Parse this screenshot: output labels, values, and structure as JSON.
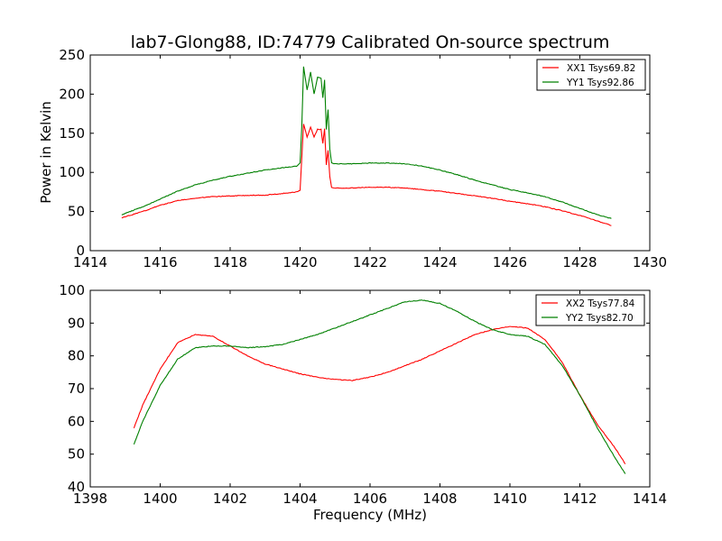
{
  "chart_data": [
    {
      "type": "line",
      "title": "lab7-Glong88, ID:74779 Calibrated On-source spectrum",
      "xlabel": "",
      "ylabel": "Power in Kelvin",
      "xlim": [
        1414,
        1430
      ],
      "ylim": [
        0,
        250
      ],
      "xticks": [
        1414,
        1416,
        1418,
        1420,
        1422,
        1424,
        1426,
        1428,
        1430
      ],
      "yticks": [
        0,
        50,
        100,
        150,
        200,
        250
      ],
      "grid": false,
      "legend_position": "top-right",
      "series": [
        {
          "name": "XX1 Tsys69.82",
          "color": "#ff0000",
          "x": [
            1414.9,
            1415.5,
            1416.0,
            1416.5,
            1417.0,
            1417.5,
            1418.0,
            1418.5,
            1419.0,
            1419.5,
            1419.9,
            1420.0,
            1420.05,
            1420.1,
            1420.2,
            1420.3,
            1420.4,
            1420.5,
            1420.6,
            1420.65,
            1420.7,
            1420.75,
            1420.8,
            1420.85,
            1420.9,
            1421.0,
            1421.5,
            1422.0,
            1422.5,
            1423.0,
            1423.5,
            1424.0,
            1424.5,
            1425.0,
            1425.5,
            1426.0,
            1426.5,
            1427.0,
            1427.5,
            1428.0,
            1428.5,
            1428.9
          ],
          "y": [
            42,
            50,
            58,
            64,
            67,
            69,
            70,
            70.5,
            71,
            73,
            75,
            77,
            120,
            162,
            145,
            158,
            145,
            155,
            155,
            137,
            156,
            110,
            128,
            95,
            81,
            80,
            80,
            81,
            81,
            80,
            78,
            76,
            73,
            70,
            67,
            63,
            60,
            56,
            51,
            45,
            38,
            32
          ]
        },
        {
          "name": "YY1 Tsys92.86",
          "color": "#008000",
          "x": [
            1414.9,
            1415.5,
            1416.0,
            1416.5,
            1417.0,
            1417.5,
            1418.0,
            1418.5,
            1419.0,
            1419.5,
            1419.9,
            1420.0,
            1420.05,
            1420.1,
            1420.2,
            1420.3,
            1420.4,
            1420.5,
            1420.6,
            1420.65,
            1420.7,
            1420.75,
            1420.8,
            1420.85,
            1420.9,
            1421.0,
            1421.5,
            1422.0,
            1422.5,
            1423.0,
            1423.5,
            1424.0,
            1424.5,
            1425.0,
            1425.5,
            1426.0,
            1426.5,
            1427.0,
            1427.5,
            1428.0,
            1428.5,
            1428.9
          ],
          "y": [
            46,
            56,
            66,
            76,
            84,
            90,
            95,
            99,
            103,
            106,
            108,
            112,
            160,
            235,
            205,
            228,
            200,
            222,
            220,
            195,
            218,
            155,
            180,
            130,
            112,
            111,
            111,
            112,
            112,
            111,
            108,
            103,
            97,
            90,
            84,
            78,
            74,
            69,
            62,
            54,
            46,
            41
          ]
        }
      ]
    },
    {
      "type": "line",
      "title": "",
      "xlabel": "Frequency (MHz)",
      "ylabel": "",
      "xlim": [
        1398,
        1414
      ],
      "ylim": [
        40,
        100
      ],
      "xticks": [
        1398,
        1400,
        1402,
        1404,
        1406,
        1408,
        1410,
        1412,
        1414
      ],
      "yticks": [
        40,
        50,
        60,
        70,
        80,
        90,
        100
      ],
      "grid": false,
      "legend_position": "top-right",
      "series": [
        {
          "name": "XX2 Tsys77.84",
          "color": "#ff0000",
          "x": [
            1399.25,
            1399.5,
            1400.0,
            1400.5,
            1401.0,
            1401.5,
            1402.0,
            1402.5,
            1403.0,
            1403.5,
            1404.0,
            1404.5,
            1405.0,
            1405.5,
            1406.0,
            1406.5,
            1407.0,
            1407.5,
            1408.0,
            1408.5,
            1409.0,
            1409.5,
            1410.0,
            1410.5,
            1411.0,
            1411.5,
            1412.0,
            1412.5,
            1413.0,
            1413.3
          ],
          "y": [
            58,
            65,
            76,
            84,
            86.5,
            86,
            83,
            80,
            77.5,
            76,
            74.5,
            73.5,
            72.8,
            72.5,
            73.5,
            75,
            77,
            79,
            81.5,
            84,
            86.5,
            88,
            89,
            88.5,
            85,
            78,
            68,
            59,
            52,
            47
          ]
        },
        {
          "name": "YY2 Tsys82.70",
          "color": "#008000",
          "x": [
            1399.25,
            1399.5,
            1400.0,
            1400.5,
            1401.0,
            1401.5,
            1402.0,
            1402.5,
            1403.0,
            1403.5,
            1404.0,
            1404.5,
            1405.0,
            1405.5,
            1406.0,
            1406.5,
            1407.0,
            1407.5,
            1408.0,
            1408.5,
            1409.0,
            1409.5,
            1410.0,
            1410.5,
            1411.0,
            1411.5,
            1412.0,
            1412.5,
            1413.0,
            1413.3
          ],
          "y": [
            53,
            60,
            71,
            79,
            82.5,
            83,
            83,
            82.5,
            82.8,
            83.5,
            85,
            86.5,
            88.5,
            90.5,
            92.5,
            94.5,
            96.5,
            97,
            96,
            93.5,
            90.5,
            88,
            86.5,
            86,
            83.5,
            77,
            68,
            58,
            49,
            44
          ]
        }
      ]
    }
  ]
}
